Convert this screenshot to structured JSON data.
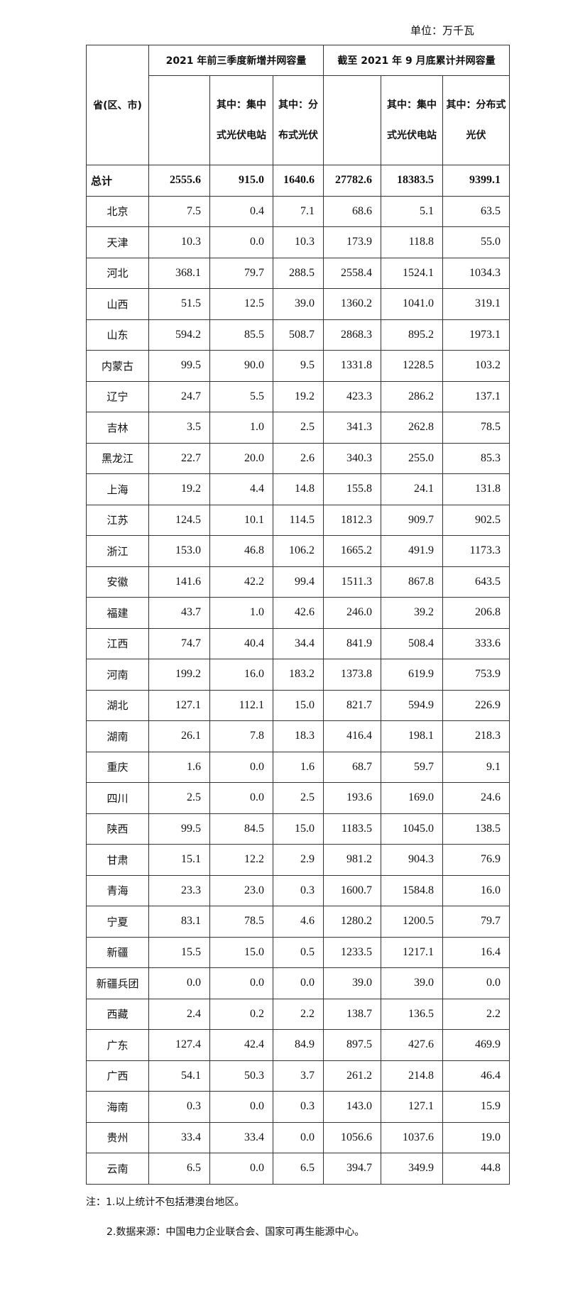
{
  "unit_label": "单位：万千瓦",
  "header": {
    "region": "省(区、市)",
    "group1": "2021 年前三季度新增并网容量",
    "group2": "截至 2021 年 9 月底累计并网容量",
    "sub": [
      "",
      "其中：集中式光伏电站",
      "其中：分布式光伏",
      "",
      "其中：集中式光伏电站",
      "其中：分布式光伏"
    ]
  },
  "rows": [
    [
      "总计",
      "2555.6",
      "915.0",
      "1640.6",
      "27782.6",
      "18383.5",
      "9399.1"
    ],
    [
      "北京",
      "7.5",
      "0.4",
      "7.1",
      "68.6",
      "5.1",
      "63.5"
    ],
    [
      "天津",
      "10.3",
      "0.0",
      "10.3",
      "173.9",
      "118.8",
      "55.0"
    ],
    [
      "河北",
      "368.1",
      "79.7",
      "288.5",
      "2558.4",
      "1524.1",
      "1034.3"
    ],
    [
      "山西",
      "51.5",
      "12.5",
      "39.0",
      "1360.2",
      "1041.0",
      "319.1"
    ],
    [
      "山东",
      "594.2",
      "85.5",
      "508.7",
      "2868.3",
      "895.2",
      "1973.1"
    ],
    [
      "内蒙古",
      "99.5",
      "90.0",
      "9.5",
      "1331.8",
      "1228.5",
      "103.2"
    ],
    [
      "辽宁",
      "24.7",
      "5.5",
      "19.2",
      "423.3",
      "286.2",
      "137.1"
    ],
    [
      "吉林",
      "3.5",
      "1.0",
      "2.5",
      "341.3",
      "262.8",
      "78.5"
    ],
    [
      "黑龙江",
      "22.7",
      "20.0",
      "2.6",
      "340.3",
      "255.0",
      "85.3"
    ],
    [
      "上海",
      "19.2",
      "4.4",
      "14.8",
      "155.8",
      "24.1",
      "131.8"
    ],
    [
      "江苏",
      "124.5",
      "10.1",
      "114.5",
      "1812.3",
      "909.7",
      "902.5"
    ],
    [
      "浙江",
      "153.0",
      "46.8",
      "106.2",
      "1665.2",
      "491.9",
      "1173.3"
    ],
    [
      "安徽",
      "141.6",
      "42.2",
      "99.4",
      "1511.3",
      "867.8",
      "643.5"
    ],
    [
      "福建",
      "43.7",
      "1.0",
      "42.6",
      "246.0",
      "39.2",
      "206.8"
    ],
    [
      "江西",
      "74.7",
      "40.4",
      "34.4",
      "841.9",
      "508.4",
      "333.6"
    ],
    [
      "河南",
      "199.2",
      "16.0",
      "183.2",
      "1373.8",
      "619.9",
      "753.9"
    ],
    [
      "湖北",
      "127.1",
      "112.1",
      "15.0",
      "821.7",
      "594.9",
      "226.9"
    ],
    [
      "湖南",
      "26.1",
      "7.8",
      "18.3",
      "416.4",
      "198.1",
      "218.3"
    ],
    [
      "重庆",
      "1.6",
      "0.0",
      "1.6",
      "68.7",
      "59.7",
      "9.1"
    ],
    [
      "四川",
      "2.5",
      "0.0",
      "2.5",
      "193.6",
      "169.0",
      "24.6"
    ],
    [
      "陕西",
      "99.5",
      "84.5",
      "15.0",
      "1183.5",
      "1045.0",
      "138.5"
    ],
    [
      "甘肃",
      "15.1",
      "12.2",
      "2.9",
      "981.2",
      "904.3",
      "76.9"
    ],
    [
      "青海",
      "23.3",
      "23.0",
      "0.3",
      "1600.7",
      "1584.8",
      "16.0"
    ],
    [
      "宁夏",
      "83.1",
      "78.5",
      "4.6",
      "1280.2",
      "1200.5",
      "79.7"
    ],
    [
      "新疆",
      "15.5",
      "15.0",
      "0.5",
      "1233.5",
      "1217.1",
      "16.4"
    ],
    [
      "新疆兵团",
      "0.0",
      "0.0",
      "0.0",
      "39.0",
      "39.0",
      "0.0"
    ],
    [
      "西藏",
      "2.4",
      "0.2",
      "2.2",
      "138.7",
      "136.5",
      "2.2"
    ],
    [
      "广东",
      "127.4",
      "42.4",
      "84.9",
      "897.5",
      "427.6",
      "469.9"
    ],
    [
      "广西",
      "54.1",
      "50.3",
      "3.7",
      "261.2",
      "214.8",
      "46.4"
    ],
    [
      "海南",
      "0.3",
      "0.0",
      "0.3",
      "143.0",
      "127.1",
      "15.9"
    ],
    [
      "贵州",
      "33.4",
      "33.4",
      "0.0",
      "1056.6",
      "1037.6",
      "19.0"
    ],
    [
      "云南",
      "6.5",
      "0.0",
      "6.5",
      "394.7",
      "349.9",
      "44.8"
    ]
  ],
  "notes": [
    "注：1.以上统计不包括港澳台地区。",
    "2.数据来源：中国电力企业联合会、国家可再生能源中心。"
  ]
}
